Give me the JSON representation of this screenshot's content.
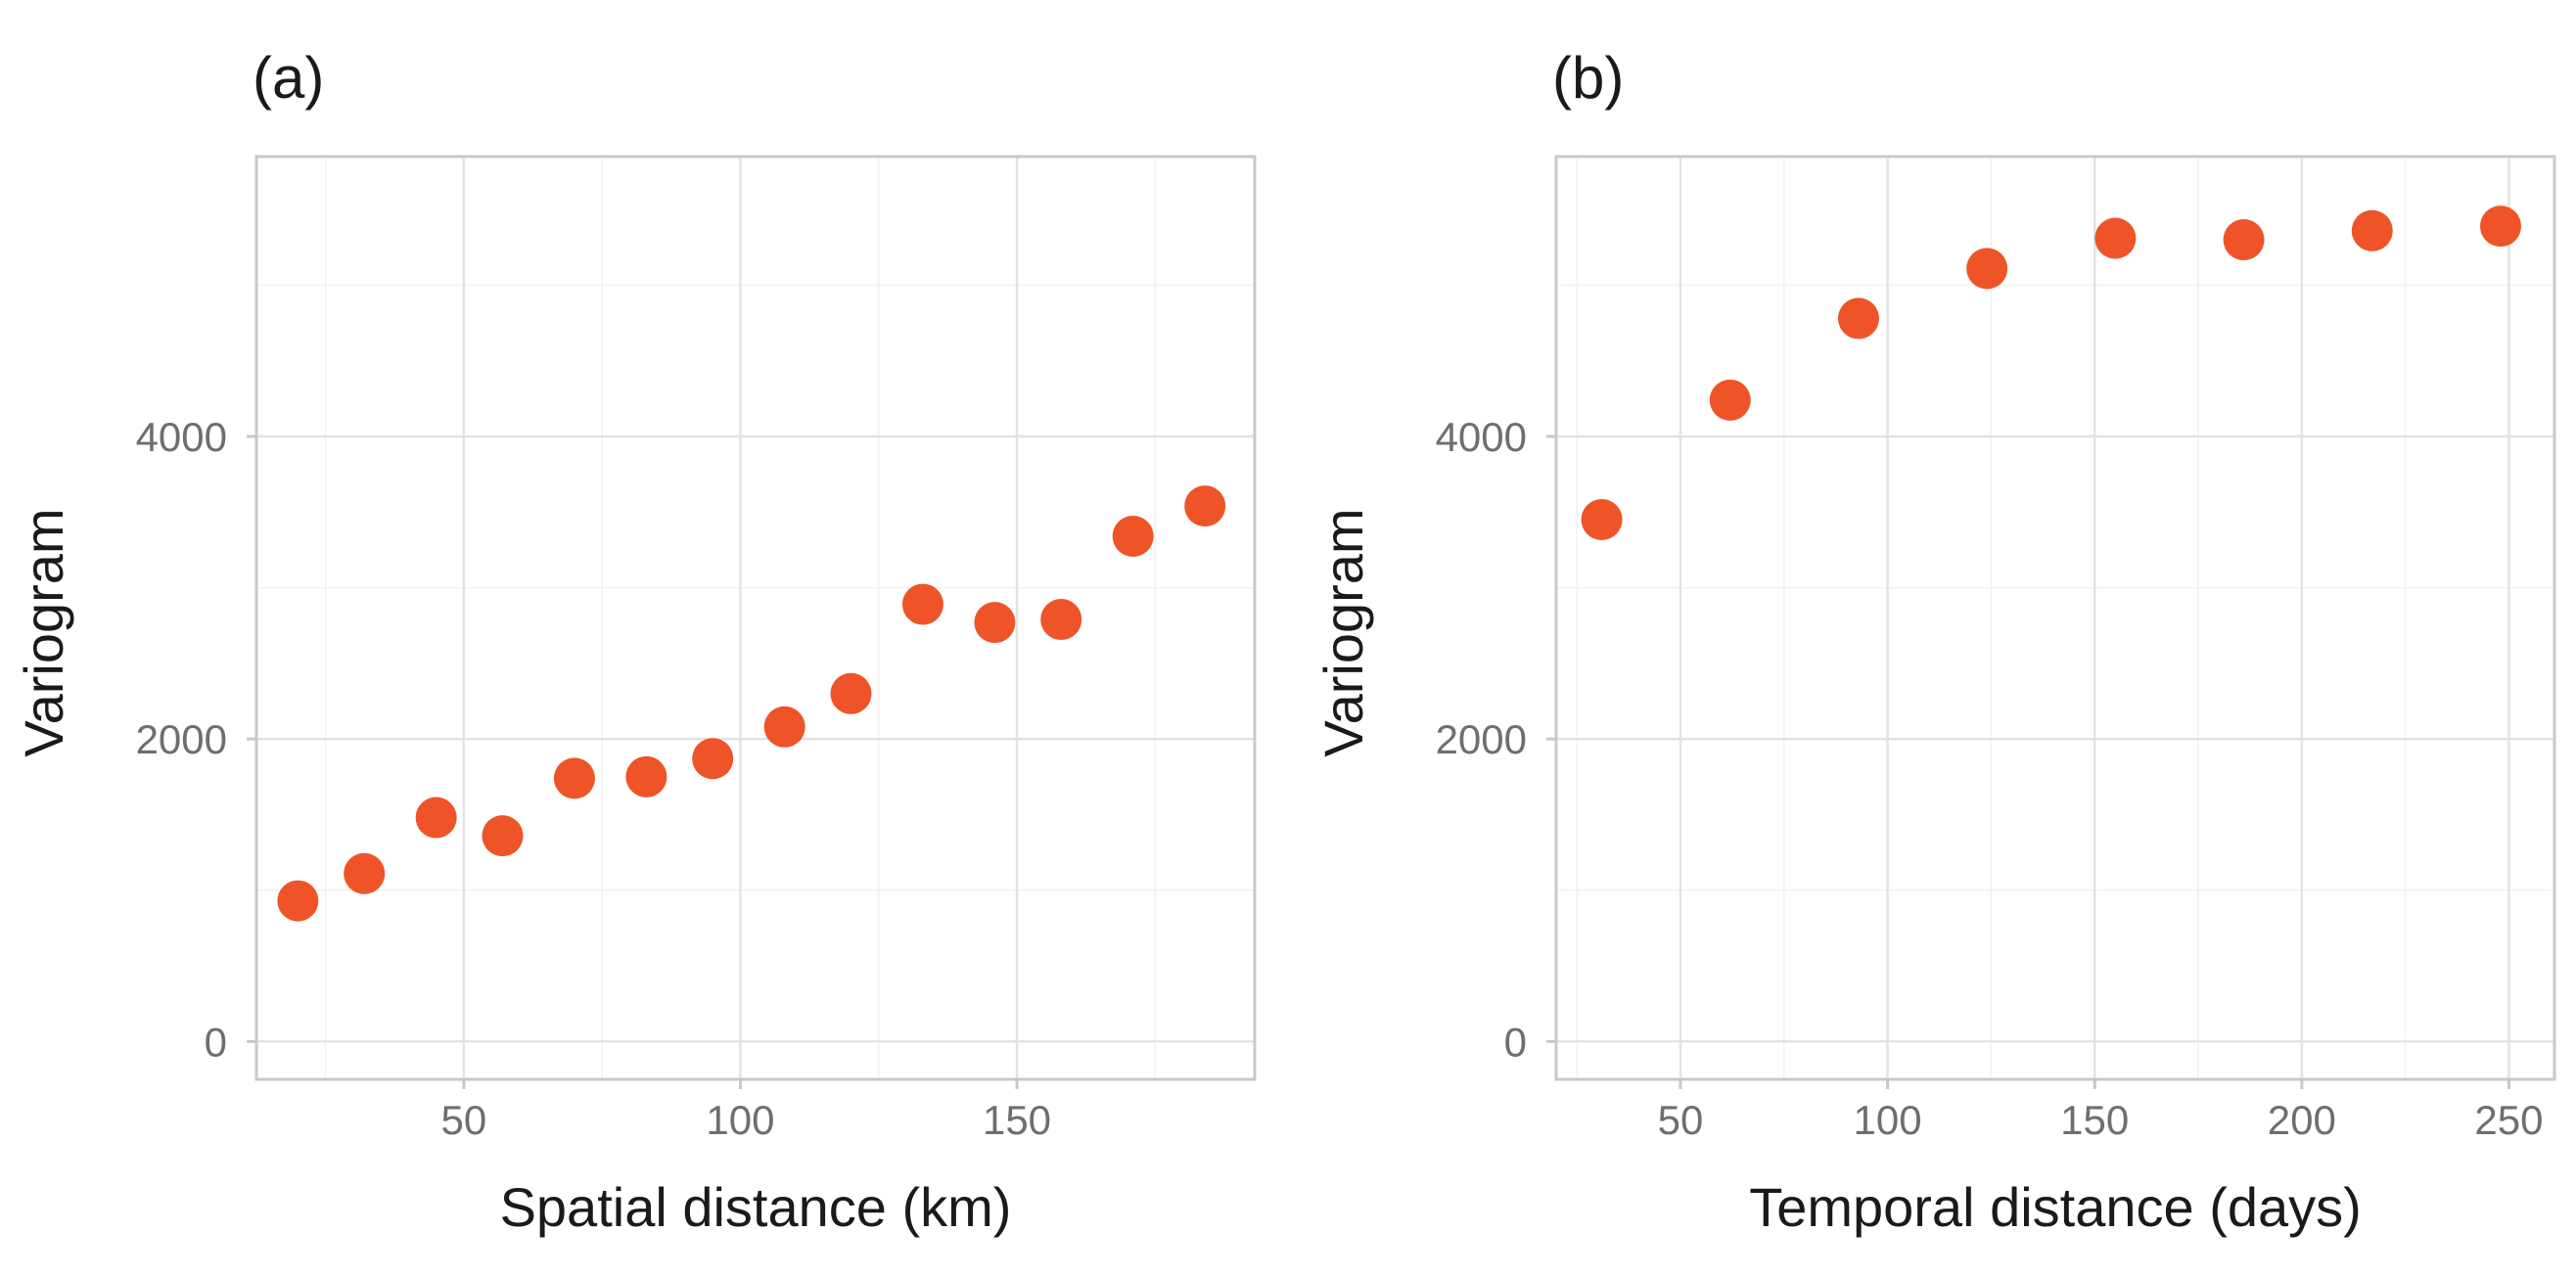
{
  "colors": {
    "point": "#ee5428"
  },
  "chart_data": [
    {
      "type": "scatter",
      "panel_label": "(a)",
      "xlabel": "Spatial distance (km)",
      "ylabel": "Variogram",
      "xlim": [
        12.5,
        193
      ],
      "ylim": [
        -250,
        5850
      ],
      "x_ticks": [
        50,
        100,
        150
      ],
      "x_tick_labels": [
        "50",
        "100",
        "150"
      ],
      "y_ticks": [
        0,
        2000,
        4000
      ],
      "y_tick_labels": [
        "0",
        "2000",
        "4000"
      ],
      "x": [
        20,
        32,
        45,
        57,
        70,
        83,
        95,
        108,
        120,
        133,
        146,
        158,
        171,
        184
      ],
      "y": [
        930,
        1110,
        1480,
        1360,
        1740,
        1750,
        1870,
        2080,
        2300,
        2890,
        2770,
        2790,
        3340,
        3540
      ]
    },
    {
      "type": "scatter",
      "panel_label": "(b)",
      "xlabel": "Temporal distance (days)",
      "ylabel": "Variogram",
      "xlim": [
        20,
        261
      ],
      "ylim": [
        -250,
        5850
      ],
      "x_ticks": [
        50,
        100,
        150,
        200,
        250
      ],
      "x_tick_labels": [
        "50",
        "100",
        "150",
        "200",
        "250"
      ],
      "y_ticks": [
        0,
        2000,
        4000
      ],
      "y_tick_labels": [
        "0",
        "2000",
        "4000"
      ],
      "x": [
        31,
        62,
        93,
        124,
        155,
        186,
        217,
        248
      ],
      "y": [
        3450,
        4240,
        4780,
        5110,
        5310,
        5300,
        5360,
        5390
      ]
    }
  ]
}
